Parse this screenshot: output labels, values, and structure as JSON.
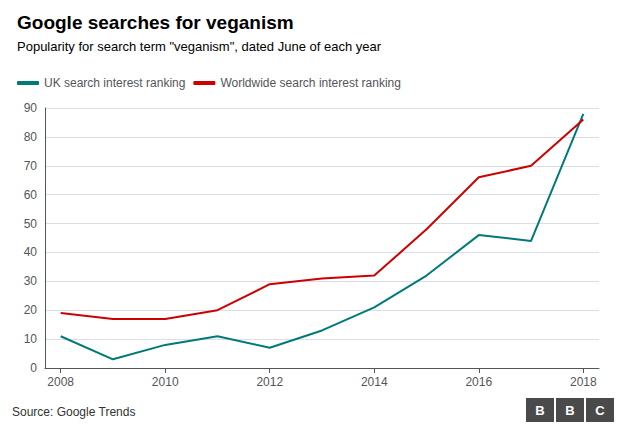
{
  "chart_data": {
    "type": "line",
    "title": "Google searches for veganism",
    "subtitle": "Popularity for search term \"veganism\", dated June of each year",
    "annotations": [
      "Source: Google Trends",
      "B",
      "B",
      "C"
    ],
    "x": [
      2008,
      2009,
      2010,
      2011,
      2012,
      2013,
      2014,
      2015,
      2016,
      2017,
      2018
    ],
    "series": [
      {
        "name": "UK search interest ranking",
        "color": "#007A78",
        "values": [
          11,
          3,
          8,
          11,
          7,
          13,
          21,
          32,
          46,
          44,
          88
        ]
      },
      {
        "name": "Worldwide search interest ranking",
        "color": "#CC0000",
        "values": [
          19,
          17,
          17,
          20,
          29,
          31,
          32,
          48,
          66,
          70,
          86
        ]
      }
    ],
    "xlim": [
      2007.7,
      2018.3
    ],
    "xticks": [
      2008,
      2010,
      2012,
      2014,
      2016,
      2018
    ],
    "ylim": [
      0,
      90
    ],
    "yticks": [
      0,
      10,
      20,
      30,
      40,
      50,
      60,
      70,
      80,
      90
    ],
    "grid": true,
    "legend": "upper left"
  }
}
